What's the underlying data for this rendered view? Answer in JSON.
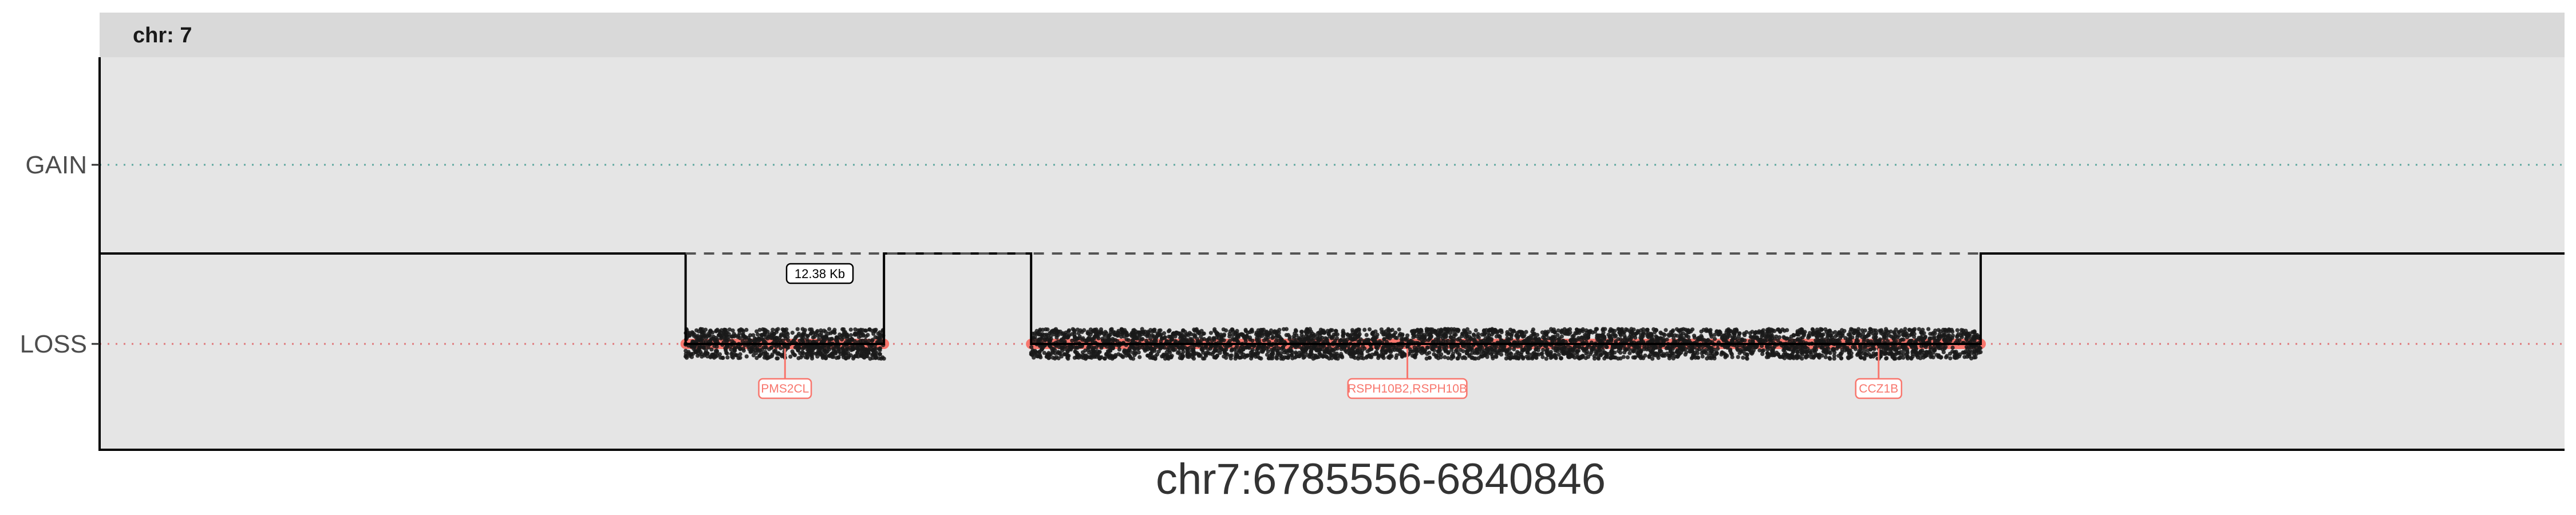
{
  "chart_data": {
    "type": "scatter",
    "title": "",
    "facet_label": "chr: 7",
    "xlabel": "chr7:6785556-6840846",
    "ylabel": "",
    "xlim": [
      6785556,
      6840846
    ],
    "y_categories": [
      "GAIN",
      "LOSS"
    ],
    "grid": false,
    "legend": "none",
    "reference_lines": [
      {
        "category": "GAIN",
        "style": "dotted",
        "color": "#5fa8a0"
      },
      {
        "category": "LOSS",
        "style": "dotted",
        "color": "#e0787a"
      }
    ],
    "segment_profile": [
      {
        "x0": 6785556,
        "x1": 6798700,
        "state": "neutral"
      },
      {
        "x0": 6798700,
        "x1": 6803150,
        "state": "LOSS"
      },
      {
        "x0": 6803150,
        "x1": 6806450,
        "state": "neutral"
      },
      {
        "x0": 6806450,
        "x1": 6827750,
        "state": "LOSS"
      },
      {
        "x0": 6827750,
        "x1": 6840846,
        "state": "neutral"
      }
    ],
    "loss_regions": [
      {
        "start": 6798700,
        "end": 6803150
      },
      {
        "start": 6806450,
        "end": 6827750
      }
    ],
    "gap_annotation": {
      "label": "12.38 Kb",
      "x": 6801710
    },
    "genes": [
      {
        "name": "PMS2CL",
        "x": 6800930
      },
      {
        "name": "RSPH10B2,RSPH10B",
        "x": 6814890
      },
      {
        "name": "CCZ1B",
        "x": 6825460
      }
    ],
    "colors": {
      "panel_bg": "#e5e5e5",
      "strip_bg": "#d9d9d9",
      "loss": "#f8766d",
      "points": "#1a1a1a"
    }
  }
}
